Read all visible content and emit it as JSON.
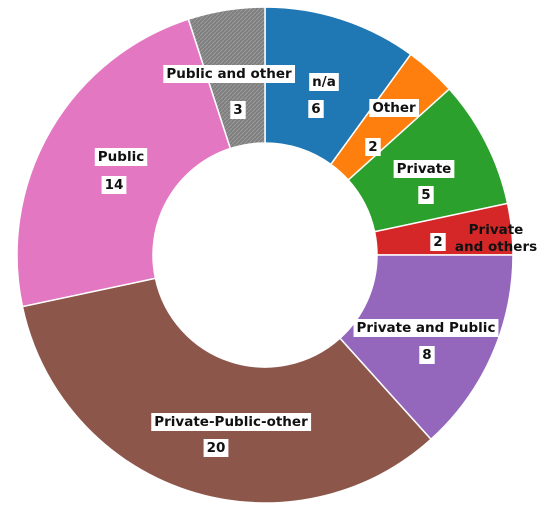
{
  "chart_data": {
    "type": "pie",
    "variant": "donut",
    "title": "",
    "legend": "none",
    "slices": [
      {
        "label": "n/a",
        "value": 6,
        "value_label": "6",
        "color": "#1f77b4"
      },
      {
        "label": "Other",
        "value": 2,
        "value_label": "2",
        "color": "#ff7f0e"
      },
      {
        "label": "Private",
        "value": 5,
        "value_label": "5",
        "color": "#2ca02c"
      },
      {
        "label": "Private and others",
        "value": 2,
        "value_label": "2",
        "color": "#d62728"
      },
      {
        "label": "Private and Public",
        "value": 8,
        "value_label": "8",
        "color": "#9467bd"
      },
      {
        "label": "Private-Public-other",
        "value": 20,
        "value_label": "20",
        "color": "#8c564b"
      },
      {
        "label": "Public",
        "value": 14,
        "value_label": "14",
        "color": "#e377c2"
      },
      {
        "label": "Public and other",
        "value": 3,
        "value_label": "3",
        "color": "#7f7f7f"
      }
    ]
  }
}
